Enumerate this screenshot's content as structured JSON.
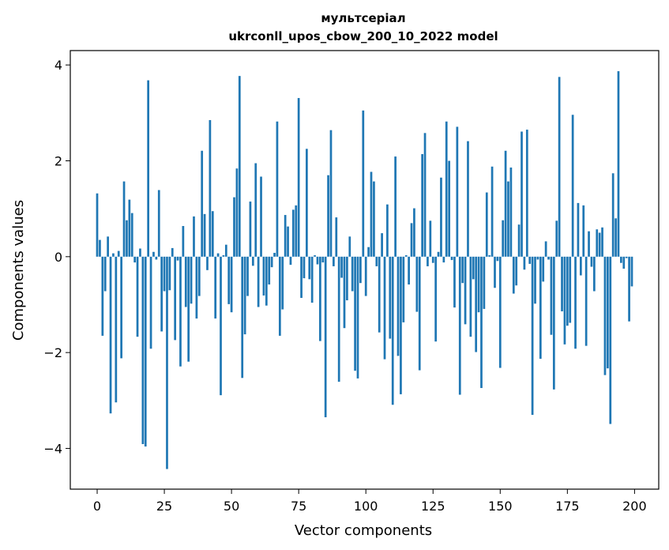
{
  "chart_data": {
    "type": "bar",
    "title_line1": "мультсеріал",
    "title_line2": "ukrconll_upos_cbow_200_10_2022 model",
    "xlabel": "Vector components",
    "ylabel": "Components values",
    "xlim": [
      -10,
      209
    ],
    "ylim": [
      -4.85,
      4.3
    ],
    "xticks": [
      0,
      25,
      50,
      75,
      100,
      125,
      150,
      175,
      200
    ],
    "xtick_labels": [
      "0",
      "25",
      "50",
      "75",
      "100",
      "125",
      "150",
      "175",
      "200"
    ],
    "yticks": [
      -4,
      -2,
      0,
      2,
      4
    ],
    "ytick_labels": [
      "−4",
      "−2",
      "0",
      "2",
      "4"
    ],
    "bar_color": "#1f77b4",
    "grid": false,
    "legend": "none",
    "values": [
      1.32,
      0.35,
      -1.65,
      -0.72,
      0.42,
      -3.27,
      0.07,
      -3.04,
      0.12,
      -2.12,
      1.57,
      0.76,
      1.19,
      0.91,
      -0.12,
      -1.67,
      0.17,
      -3.91,
      -3.96,
      3.68,
      -1.92,
      0.1,
      -0.06,
      1.39,
      -1.56,
      -0.72,
      -4.43,
      -0.7,
      0.18,
      -1.74,
      -0.08,
      -2.29,
      0.64,
      -1.05,
      -2.19,
      -0.98,
      0.84,
      -1.29,
      -0.82,
      2.21,
      0.89,
      -0.28,
      2.85,
      0.95,
      -1.29,
      0.07,
      -2.89,
      0.03,
      0.25,
      -0.99,
      -1.16,
      1.24,
      1.84,
      3.77,
      -2.53,
      -1.62,
      -0.82,
      1.15,
      -0.19,
      1.95,
      -1.05,
      1.67,
      -0.81,
      -1.02,
      -0.58,
      -0.22,
      0.08,
      2.82,
      -1.65,
      -1.1,
      0.87,
      0.63,
      -0.17,
      0.98,
      1.07,
      3.31,
      -0.86,
      -0.45,
      2.25,
      -0.47,
      -0.96,
      0.03,
      -0.16,
      -1.76,
      -0.12,
      -3.35,
      1.7,
      2.64,
      -0.2,
      0.82,
      -2.61,
      -0.44,
      -1.49,
      -0.91,
      0.42,
      -0.72,
      -2.38,
      -2.54,
      -0.55,
      3.05,
      -0.82,
      0.2,
      1.77,
      1.57,
      -0.2,
      -1.58,
      0.49,
      -2.14,
      1.09,
      -1.71,
      -3.09,
      2.09,
      -2.07,
      -2.87,
      -1.37,
      0.03,
      -0.58,
      0.7,
      1.01,
      -1.15,
      -2.37,
      2.14,
      2.58,
      -0.2,
      0.75,
      -0.13,
      -1.77,
      0.1,
      1.65,
      -0.12,
      2.82,
      2.0,
      -0.07,
      -1.06,
      2.71,
      -2.88,
      -0.55,
      -1.41,
      2.41,
      -1.67,
      -0.47,
      -1.99,
      -1.16,
      -2.74,
      -1.09,
      1.34,
      0.03,
      1.88,
      -0.65,
      -0.09,
      -2.32,
      0.76,
      2.21,
      1.57,
      1.86,
      -0.77,
      -0.6,
      0.67,
      2.61,
      -0.27,
      2.65,
      -0.15,
      -3.3,
      -0.98,
      -0.06,
      -2.13,
      -0.52,
      0.32,
      -0.06,
      -1.63,
      -2.77,
      0.75,
      3.75,
      -1.14,
      -1.83,
      -1.44,
      -1.38,
      2.96,
      -1.92,
      1.12,
      -0.39,
      1.07,
      -1.86,
      0.53,
      -0.21,
      -0.72,
      0.57,
      0.5,
      0.61,
      -2.47,
      -2.33,
      -3.49,
      1.74,
      0.8,
      3.87,
      -0.13,
      -0.25,
      -0.03,
      -1.35,
      -0.62
    ]
  }
}
